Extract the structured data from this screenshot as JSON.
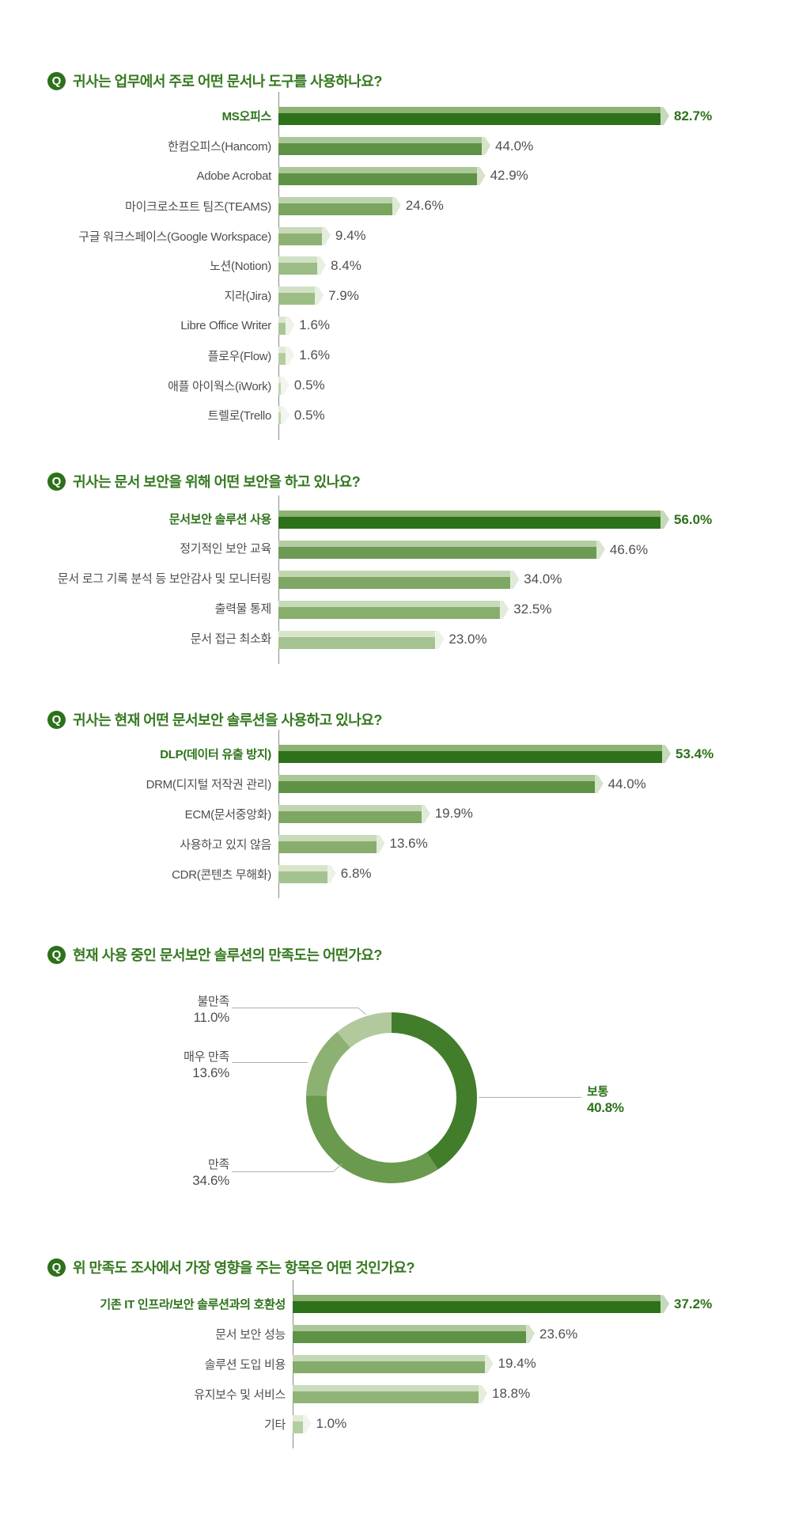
{
  "q_badge": "Q",
  "colors": {
    "accent_dark_green": "#2d711b",
    "heading_green": "#35791f",
    "label_gray": "#4e4e4e",
    "axis_gray": "#8b8b8b",
    "leader_line_gray": "#b0b0b0",
    "background": "#ffffff"
  },
  "chart_data": [
    {
      "type": "bar",
      "orientation": "horizontal",
      "title": "귀사는 업무에서 주로 어떤 문서나 도구를 사용하나요?",
      "categories": [
        "MS오피스",
        "한컴오피스(Hancom)",
        "Adobe Acrobat",
        "마이크로소프트 팀즈(TEAMS)",
        "구글 워크스페이스(Google Workspace)",
        "노션(Notion)",
        "지라(Jira)",
        "Libre Office Writer",
        "플로우(Flow)",
        "애플 아이웍스(iWork)",
        "트렐로(Trello"
      ],
      "values": [
        82.7,
        44.0,
        42.9,
        24.6,
        9.4,
        8.4,
        7.9,
        1.6,
        1.6,
        0.5,
        0.5
      ],
      "value_labels": [
        "82.7%",
        "44.0%",
        "42.9%",
        "24.6%",
        "9.4%",
        "8.4%",
        "7.9%",
        "1.6%",
        "1.6%",
        "0.5%",
        "0.5%"
      ],
      "bar_colors": [
        "#2d711b",
        "#5e9245",
        "#5e9245",
        "#79a55f",
        "#8db274",
        "#9cbd86",
        "#9cbd86",
        "#a9c795",
        "#b3cda1",
        "#bed5ad",
        "#bed5ad"
      ],
      "bar_highlights": [
        "#8db274",
        "#abc797",
        "#abc797",
        "#bcd2ab",
        "#c8daba",
        "#d2e1c5",
        "#d2e1c5",
        "#dae6cf",
        "#e0ebd7",
        "#e5eede",
        "#e5eede"
      ],
      "xlim": [
        0,
        82.7
      ],
      "grid": false,
      "legend": "none"
    },
    {
      "type": "bar",
      "orientation": "horizontal",
      "title": "귀사는 문서 보안을 위해 어떤 보안을 하고 있나요?",
      "categories": [
        "문서보안 솔루션 사용",
        "정기적인 보안 교육",
        "문서 로그 기록 분석 등 보안감사 및 모니터링",
        "출력물 통제",
        "문서 접근 최소화"
      ],
      "values": [
        56.0,
        46.6,
        34.0,
        32.5,
        23.0
      ],
      "value_labels": [
        "56.0%",
        "46.6%",
        "34.0%",
        "32.5%",
        "23.0%"
      ],
      "bar_colors": [
        "#2d711b",
        "#6d9b53",
        "#7ea763",
        "#88ae6e",
        "#a5c390"
      ],
      "bar_highlights": [
        "#8db274",
        "#b5cda2",
        "#c0d5b0",
        "#c7dab9",
        "#d8e5cc"
      ],
      "xlim": [
        0,
        56.0
      ],
      "grid": false,
      "legend": "none"
    },
    {
      "type": "bar",
      "orientation": "horizontal",
      "title": "귀사는 현재 어떤 문서보안 솔루션을 사용하고 있나요?",
      "categories": [
        "DLP(데이터 유출 방지)",
        "DRM(디지털 저작권 관리)",
        "ECM(문서중앙화)",
        "사용하고 있지 않음",
        "CDR(콘텐츠 무해화)"
      ],
      "values": [
        53.4,
        44.0,
        19.9,
        13.6,
        6.8
      ],
      "value_labels": [
        "53.4%",
        "44.0%",
        "19.9%",
        "13.6%",
        "6.8%"
      ],
      "bar_colors": [
        "#2d711b",
        "#5e9245",
        "#7ea763",
        "#88ae6e",
        "#a5c390"
      ],
      "bar_highlights": [
        "#8db274",
        "#abc797",
        "#c0d5b0",
        "#c7dab9",
        "#d8e5cc"
      ],
      "xlim": [
        0,
        53.4
      ],
      "grid": false,
      "legend": "none"
    },
    {
      "type": "pie",
      "subtype": "donut",
      "title": "현재 사용 중인 문서보안 솔루션의 만족도는 어떤가요?",
      "start_angle_deg": 0,
      "direction": "clockwise",
      "slices": [
        {
          "label": "보통",
          "value": 40.8,
          "value_label": "40.8%",
          "color": "#417d2a",
          "emphasis": true
        },
        {
          "label": "만족",
          "value": 34.6,
          "value_label": "34.6%",
          "color": "#6a9a4d",
          "emphasis": false
        },
        {
          "label": "매우 만족",
          "value": 13.6,
          "value_label": "13.6%",
          "color": "#8cb173",
          "emphasis": false
        },
        {
          "label": "불만족",
          "value": 11.0,
          "value_label": "11.0%",
          "color": "#b2c99e",
          "emphasis": false
        }
      ]
    },
    {
      "type": "bar",
      "orientation": "horizontal",
      "title": "위 만족도 조사에서 가장 영향을 주는 항목은 어떤 것인가요?",
      "categories": [
        "기존 IT 인프라/보안 솔루션과의 호환성",
        "문서 보안 성능",
        "솔루션 도입 비용",
        "유지보수 및 서비스",
        "기타"
      ],
      "values": [
        37.2,
        23.6,
        19.4,
        18.8,
        1.0
      ],
      "value_labels": [
        "37.2%",
        "23.6%",
        "19.4%",
        "18.8%",
        "1.0%"
      ],
      "bar_colors": [
        "#2d711b",
        "#5e9245",
        "#85ac6b",
        "#90b478",
        "#b3cda1"
      ],
      "bar_highlights": [
        "#8db274",
        "#abc797",
        "#c4d8b5",
        "#cbdcbd",
        "#e0ebd7"
      ],
      "xlim": [
        0,
        37.2
      ],
      "grid": false,
      "legend": "none"
    }
  ]
}
